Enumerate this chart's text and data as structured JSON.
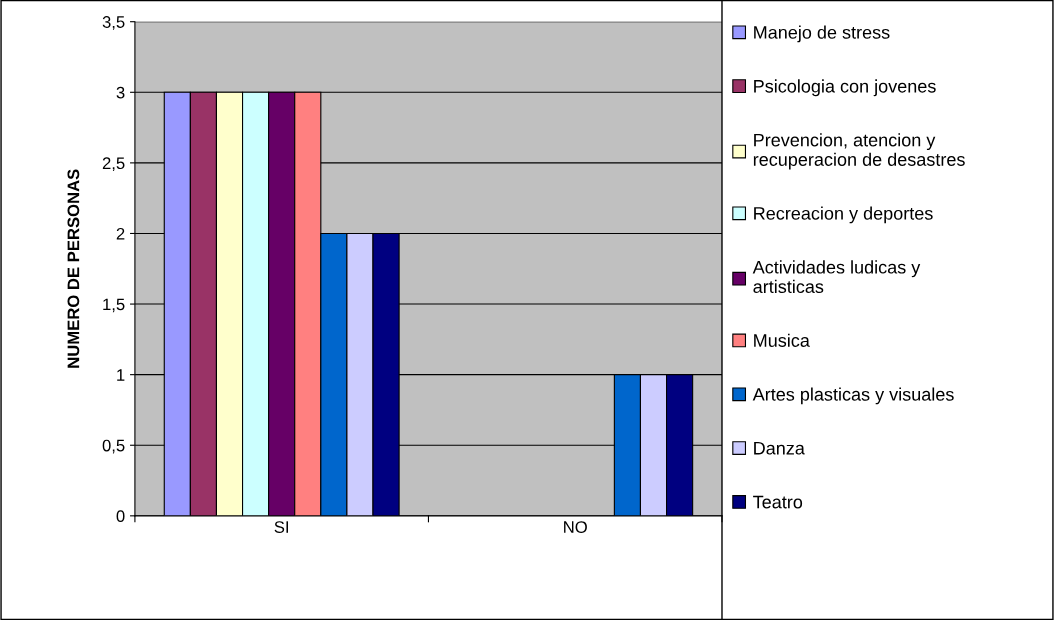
{
  "chart_data": {
    "type": "bar",
    "ylabel": "NUMERO DE PERSONAS",
    "categories": [
      "SI",
      "NO"
    ],
    "series": [
      {
        "name": "Manejo de stress",
        "color": "#9999ff",
        "values": [
          3,
          0
        ]
      },
      {
        "name": "Psicologia con jovenes",
        "color": "#993366",
        "values": [
          3,
          0
        ]
      },
      {
        "name": "Prevencion, atencion y\nrecuperacion de desastres",
        "color": "#ffffcc",
        "values": [
          3,
          0
        ]
      },
      {
        "name": "Recreacion y deportes",
        "color": "#ccffff",
        "values": [
          3,
          0
        ]
      },
      {
        "name": "Actividades ludicas y\nartisticas",
        "color": "#660066",
        "values": [
          3,
          0
        ]
      },
      {
        "name": "Musica",
        "color": "#ff8080",
        "values": [
          3,
          0
        ]
      },
      {
        "name": "Artes plasticas y visuales",
        "color": "#0066cc",
        "values": [
          2,
          1
        ]
      },
      {
        "name": "Danza",
        "color": "#ccccff",
        "values": [
          2,
          1
        ]
      },
      {
        "name": "Teatro",
        "color": "#000080",
        "values": [
          2,
          1
        ]
      }
    ],
    "ylim": [
      0,
      3.5
    ],
    "yticks": [
      0,
      {
        "value": 0.5,
        "label": "0,5"
      },
      1,
      {
        "value": 1.5,
        "label": "1,5"
      },
      2,
      {
        "value": 2.5,
        "label": "2,5"
      },
      3,
      {
        "value": 3.5,
        "label": "3,5"
      }
    ],
    "grid": "y",
    "legend": "right"
  }
}
